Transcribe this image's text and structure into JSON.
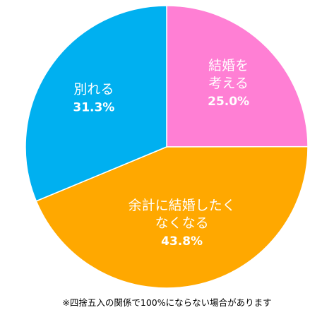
{
  "chart_data": {
    "type": "pie",
    "slices": [
      {
        "label_lines": [
          "結婚を",
          "考える"
        ],
        "value": 25.0,
        "value_label": "25.0%",
        "color": "#ff7fd4"
      },
      {
        "label_lines": [
          "余計に結婚したく",
          "なくなる"
        ],
        "value": 43.8,
        "value_label": "43.8%",
        "color": "#ffa800"
      },
      {
        "label_lines": [
          "別れる"
        ],
        "value": 31.3,
        "value_label": "31.3%",
        "color": "#00b0f0"
      }
    ],
    "start_angle": "top, clockwise",
    "legend": "none"
  },
  "footnote": "※四捨五入の関係で100%にならない場合があります"
}
